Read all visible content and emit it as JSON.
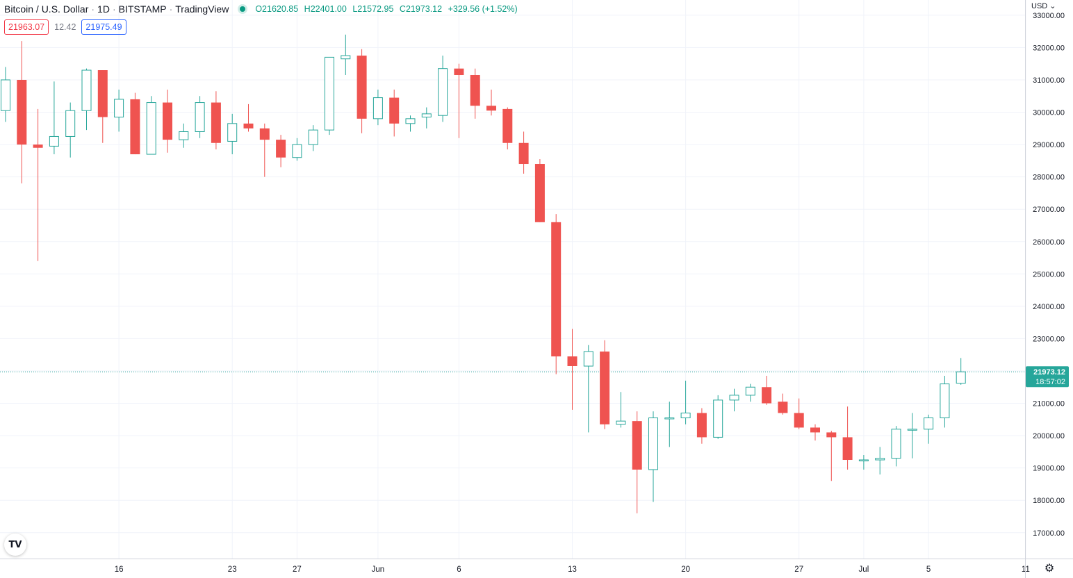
{
  "header": {
    "symbol": "Bitcoin / U.S. Dollar",
    "interval": "1D",
    "exchange": "BITSTAMP",
    "source": "TradingView",
    "separator": "·",
    "ohlc": {
      "o_label": "O",
      "o": "21620.85",
      "h_label": "H",
      "h": "22401.00",
      "l_label": "L",
      "l": "21572.95",
      "c_label": "C",
      "c": "21973.12",
      "change": "+329.56 (+1.52%)"
    }
  },
  "price_boxes": {
    "sell": "21963.07",
    "spread": "12.42",
    "buy": "21975.49"
  },
  "currency": "USD",
  "currency_caret": "⌄",
  "logo_text": "TV",
  "gear_glyph": "⚙",
  "colors": {
    "up": "#26a69a",
    "down": "#ef5350",
    "grid": "#f0f3fa",
    "axis_text": "#131722"
  },
  "chart_data": {
    "type": "candlestick",
    "y_axis": {
      "ticks": [
        17000,
        18000,
        19000,
        20000,
        21000,
        22000,
        23000,
        24000,
        25000,
        26000,
        27000,
        28000,
        29000,
        30000,
        31000,
        32000,
        33000
      ],
      "tick_labels": [
        "17000.00",
        "18000.00",
        "19000.00",
        "20000.00",
        "21000.00",
        "22000.00",
        "23000.00",
        "24000.00",
        "25000.00",
        "26000.00",
        "27000.00",
        "28000.00",
        "29000.00",
        "30000.00",
        "31000.00",
        "32000.00",
        "33000.00"
      ],
      "range": [
        16200,
        34200
      ]
    },
    "x_axis": {
      "labels": [
        "16",
        "23",
        "27",
        "Jun",
        "6",
        "13",
        "20",
        "27",
        "Jul",
        "5",
        "11"
      ],
      "label_days": [
        "2022-05-16",
        "2022-05-23",
        "2022-05-27",
        "2022-06-01",
        "2022-06-06",
        "2022-06-13",
        "2022-06-20",
        "2022-06-27",
        "2022-07-01",
        "2022-07-05",
        "2022-07-11"
      ],
      "range": [
        "2022-05-09",
        "2022-07-12"
      ]
    },
    "last_price": {
      "value": "21973.12",
      "countdown": "18:57:02"
    },
    "candles": [
      {
        "d": "2022-05-09",
        "o": 30050,
        "h": 31400,
        "l": 29700,
        "c": 31000
      },
      {
        "d": "2022-05-10",
        "o": 31000,
        "h": 32200,
        "l": 27800,
        "c": 29000
      },
      {
        "d": "2022-05-11",
        "o": 29000,
        "h": 30100,
        "l": 25400,
        "c": 28900
      },
      {
        "d": "2022-05-12",
        "o": 28950,
        "h": 30950,
        "l": 28700,
        "c": 29250
      },
      {
        "d": "2022-05-13",
        "o": 29250,
        "h": 30300,
        "l": 28600,
        "c": 30050
      },
      {
        "d": "2022-05-14",
        "o": 30050,
        "h": 31350,
        "l": 29450,
        "c": 31300
      },
      {
        "d": "2022-05-15",
        "o": 31300,
        "h": 31300,
        "l": 29050,
        "c": 29850
      },
      {
        "d": "2022-05-16",
        "o": 29850,
        "h": 30700,
        "l": 29400,
        "c": 30400
      },
      {
        "d": "2022-05-17",
        "o": 30400,
        "h": 30600,
        "l": 28700,
        "c": 28700
      },
      {
        "d": "2022-05-18",
        "o": 28700,
        "h": 30500,
        "l": 28700,
        "c": 30300
      },
      {
        "d": "2022-05-19",
        "o": 30300,
        "h": 30700,
        "l": 28750,
        "c": 29150
      },
      {
        "d": "2022-05-20",
        "o": 29150,
        "h": 29650,
        "l": 28900,
        "c": 29400
      },
      {
        "d": "2022-05-21",
        "o": 29400,
        "h": 30500,
        "l": 29200,
        "c": 30300
      },
      {
        "d": "2022-05-22",
        "o": 30300,
        "h": 30650,
        "l": 28850,
        "c": 29050
      },
      {
        "d": "2022-05-23",
        "o": 29100,
        "h": 29950,
        "l": 28700,
        "c": 29650
      },
      {
        "d": "2022-05-24",
        "o": 29650,
        "h": 30250,
        "l": 29400,
        "c": 29500
      },
      {
        "d": "2022-05-25",
        "o": 29500,
        "h": 29650,
        "l": 28000,
        "c": 29150
      },
      {
        "d": "2022-05-26",
        "o": 29150,
        "h": 29300,
        "l": 28300,
        "c": 28600
      },
      {
        "d": "2022-05-27",
        "o": 28600,
        "h": 29200,
        "l": 28500,
        "c": 29000
      },
      {
        "d": "2022-05-28",
        "o": 29000,
        "h": 29600,
        "l": 28800,
        "c": 29450
      },
      {
        "d": "2022-05-29",
        "o": 29450,
        "h": 31700,
        "l": 29300,
        "c": 31700
      },
      {
        "d": "2022-05-30",
        "o": 31650,
        "h": 32400,
        "l": 31150,
        "c": 31750
      },
      {
        "d": "2022-05-31",
        "o": 31750,
        "h": 31950,
        "l": 29350,
        "c": 29800
      },
      {
        "d": "2022-06-01",
        "o": 29800,
        "h": 30700,
        "l": 29600,
        "c": 30450
      },
      {
        "d": "2022-06-02",
        "o": 30450,
        "h": 30700,
        "l": 29250,
        "c": 29650
      },
      {
        "d": "2022-06-03",
        "o": 29650,
        "h": 29900,
        "l": 29400,
        "c": 29800
      },
      {
        "d": "2022-06-04",
        "o": 29850,
        "h": 30150,
        "l": 29500,
        "c": 29950
      },
      {
        "d": "2022-06-05",
        "o": 29900,
        "h": 31750,
        "l": 29700,
        "c": 31350
      },
      {
        "d": "2022-06-06",
        "o": 31350,
        "h": 31500,
        "l": 29200,
        "c": 31150
      },
      {
        "d": "2022-06-07",
        "o": 31150,
        "h": 31350,
        "l": 29800,
        "c": 30200
      },
      {
        "d": "2022-06-08",
        "o": 30200,
        "h": 30700,
        "l": 29900,
        "c": 30050
      },
      {
        "d": "2022-06-09",
        "o": 30100,
        "h": 30150,
        "l": 28850,
        "c": 29050
      },
      {
        "d": "2022-06-10",
        "o": 29050,
        "h": 29400,
        "l": 28100,
        "c": 28400
      },
      {
        "d": "2022-06-11",
        "o": 28400,
        "h": 28550,
        "l": 26600,
        "c": 26600
      },
      {
        "d": "2022-06-12",
        "o": 26600,
        "h": 26850,
        "l": 21900,
        "c": 22450
      },
      {
        "d": "2022-06-13",
        "o": 22450,
        "h": 23300,
        "l": 20800,
        "c": 22150
      },
      {
        "d": "2022-06-14",
        "o": 22150,
        "h": 22800,
        "l": 20100,
        "c": 22600
      },
      {
        "d": "2022-06-15",
        "o": 22600,
        "h": 22950,
        "l": 20200,
        "c": 20350
      },
      {
        "d": "2022-06-16",
        "o": 20350,
        "h": 21350,
        "l": 20250,
        "c": 20450
      },
      {
        "d": "2022-06-17",
        "o": 20450,
        "h": 20750,
        "l": 17600,
        "c": 18950
      },
      {
        "d": "2022-06-18",
        "o": 18950,
        "h": 20750,
        "l": 17950,
        "c": 20550
      },
      {
        "d": "2022-06-19",
        "o": 20550,
        "h": 21050,
        "l": 19650,
        "c": 20550
      },
      {
        "d": "2022-06-20",
        "o": 20550,
        "h": 21700,
        "l": 20350,
        "c": 20700
      },
      {
        "d": "2022-06-21",
        "o": 20700,
        "h": 20850,
        "l": 19750,
        "c": 19950
      },
      {
        "d": "2022-06-22",
        "o": 19950,
        "h": 21250,
        "l": 19900,
        "c": 21100
      },
      {
        "d": "2022-06-23",
        "o": 21100,
        "h": 21450,
        "l": 20750,
        "c": 21250
      },
      {
        "d": "2022-06-24",
        "o": 21250,
        "h": 21600,
        "l": 21050,
        "c": 21500
      },
      {
        "d": "2022-06-25",
        "o": 21500,
        "h": 21850,
        "l": 20950,
        "c": 21000
      },
      {
        "d": "2022-06-26",
        "o": 21050,
        "h": 21300,
        "l": 20650,
        "c": 20700
      },
      {
        "d": "2022-06-27",
        "o": 20700,
        "h": 21150,
        "l": 20200,
        "c": 20250
      },
      {
        "d": "2022-06-28",
        "o": 20250,
        "h": 20350,
        "l": 19850,
        "c": 20100
      },
      {
        "d": "2022-06-29",
        "o": 20100,
        "h": 20150,
        "l": 18600,
        "c": 19950
      },
      {
        "d": "2022-06-30",
        "o": 19950,
        "h": 20900,
        "l": 18950,
        "c": 19250
      },
      {
        "d": "2022-07-01",
        "o": 19250,
        "h": 19400,
        "l": 18950,
        "c": 19250
      },
      {
        "d": "2022-07-02",
        "o": 19250,
        "h": 19650,
        "l": 18800,
        "c": 19300
      },
      {
        "d": "2022-07-03",
        "o": 19300,
        "h": 20300,
        "l": 19050,
        "c": 20200
      },
      {
        "d": "2022-07-04",
        "o": 20200,
        "h": 20700,
        "l": 19300,
        "c": 20200
      },
      {
        "d": "2022-07-05",
        "o": 20200,
        "h": 20650,
        "l": 19750,
        "c": 20550
      },
      {
        "d": "2022-07-06",
        "o": 20550,
        "h": 21850,
        "l": 20250,
        "c": 21600
      },
      {
        "d": "2022-07-07",
        "o": 21620.85,
        "h": 22401.0,
        "l": 21572.95,
        "c": 21973.12
      }
    ]
  }
}
